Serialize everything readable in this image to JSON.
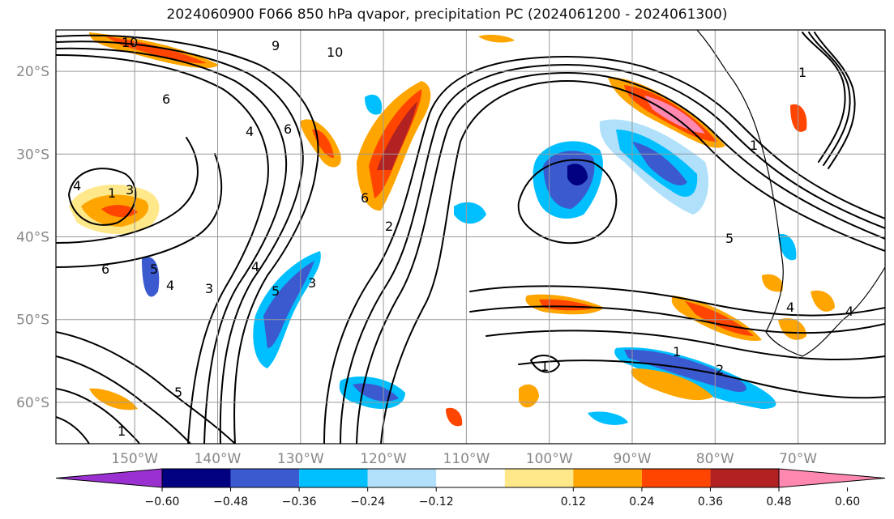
{
  "title": "2024060900 F066 850 hPa qvapor, precipitation PC (2024061200 - 2024061300)",
  "map": {
    "lon_labels": [
      "150°W",
      "140°W",
      "130°W",
      "120°W",
      "110°W",
      "100°W",
      "90°W",
      "80°W",
      "70°W"
    ],
    "lat_labels": [
      "20°S",
      "30°S",
      "40°S",
      "50°S",
      "60°S"
    ],
    "lon_values": [
      -150,
      -140,
      -130,
      -120,
      -110,
      -100,
      -90,
      -80,
      -70
    ],
    "lat_values": [
      -20,
      -30,
      -40,
      -50,
      -60
    ],
    "lon_range": [
      -159.5,
      -59.5
    ],
    "lat_range": [
      -65,
      -15
    ],
    "grid": true
  },
  "colorbar": {
    "ticks": [
      "−0.60",
      "−0.48",
      "−0.36",
      "−0.24",
      "−0.12",
      "0.12",
      "0.24",
      "0.36",
      "0.48",
      "0.60"
    ],
    "colors": [
      "#9b30d0",
      "#000080",
      "#3b5ad0",
      "#00bfff",
      "#b0e0fa",
      "#ffffff",
      "#ffe88a",
      "#ffa500",
      "#ff4500",
      "#b22222",
      "#ff88b0"
    ]
  },
  "colors": {
    "neg_strong": "#000080",
    "neg_mid": "#3b5ad0",
    "neg_light": "#00bfff",
    "neg_pale": "#b0e0fa",
    "pos_pale": "#ffe88a",
    "pos_light": "#ffa500",
    "pos_mid": "#ff4500",
    "pos_strong": "#b22222",
    "pos_extreme": "#ff88b0",
    "contour": "#000000"
  },
  "contour_labels": [
    "10",
    "9",
    "10",
    "6",
    "4",
    "3",
    "4",
    "6",
    "5",
    "6",
    "4",
    "3",
    "1",
    "2",
    "5",
    "3",
    "4",
    "5",
    "4",
    "6",
    "1",
    "2",
    "1",
    "1",
    "5",
    "4",
    "1",
    "1"
  ]
}
